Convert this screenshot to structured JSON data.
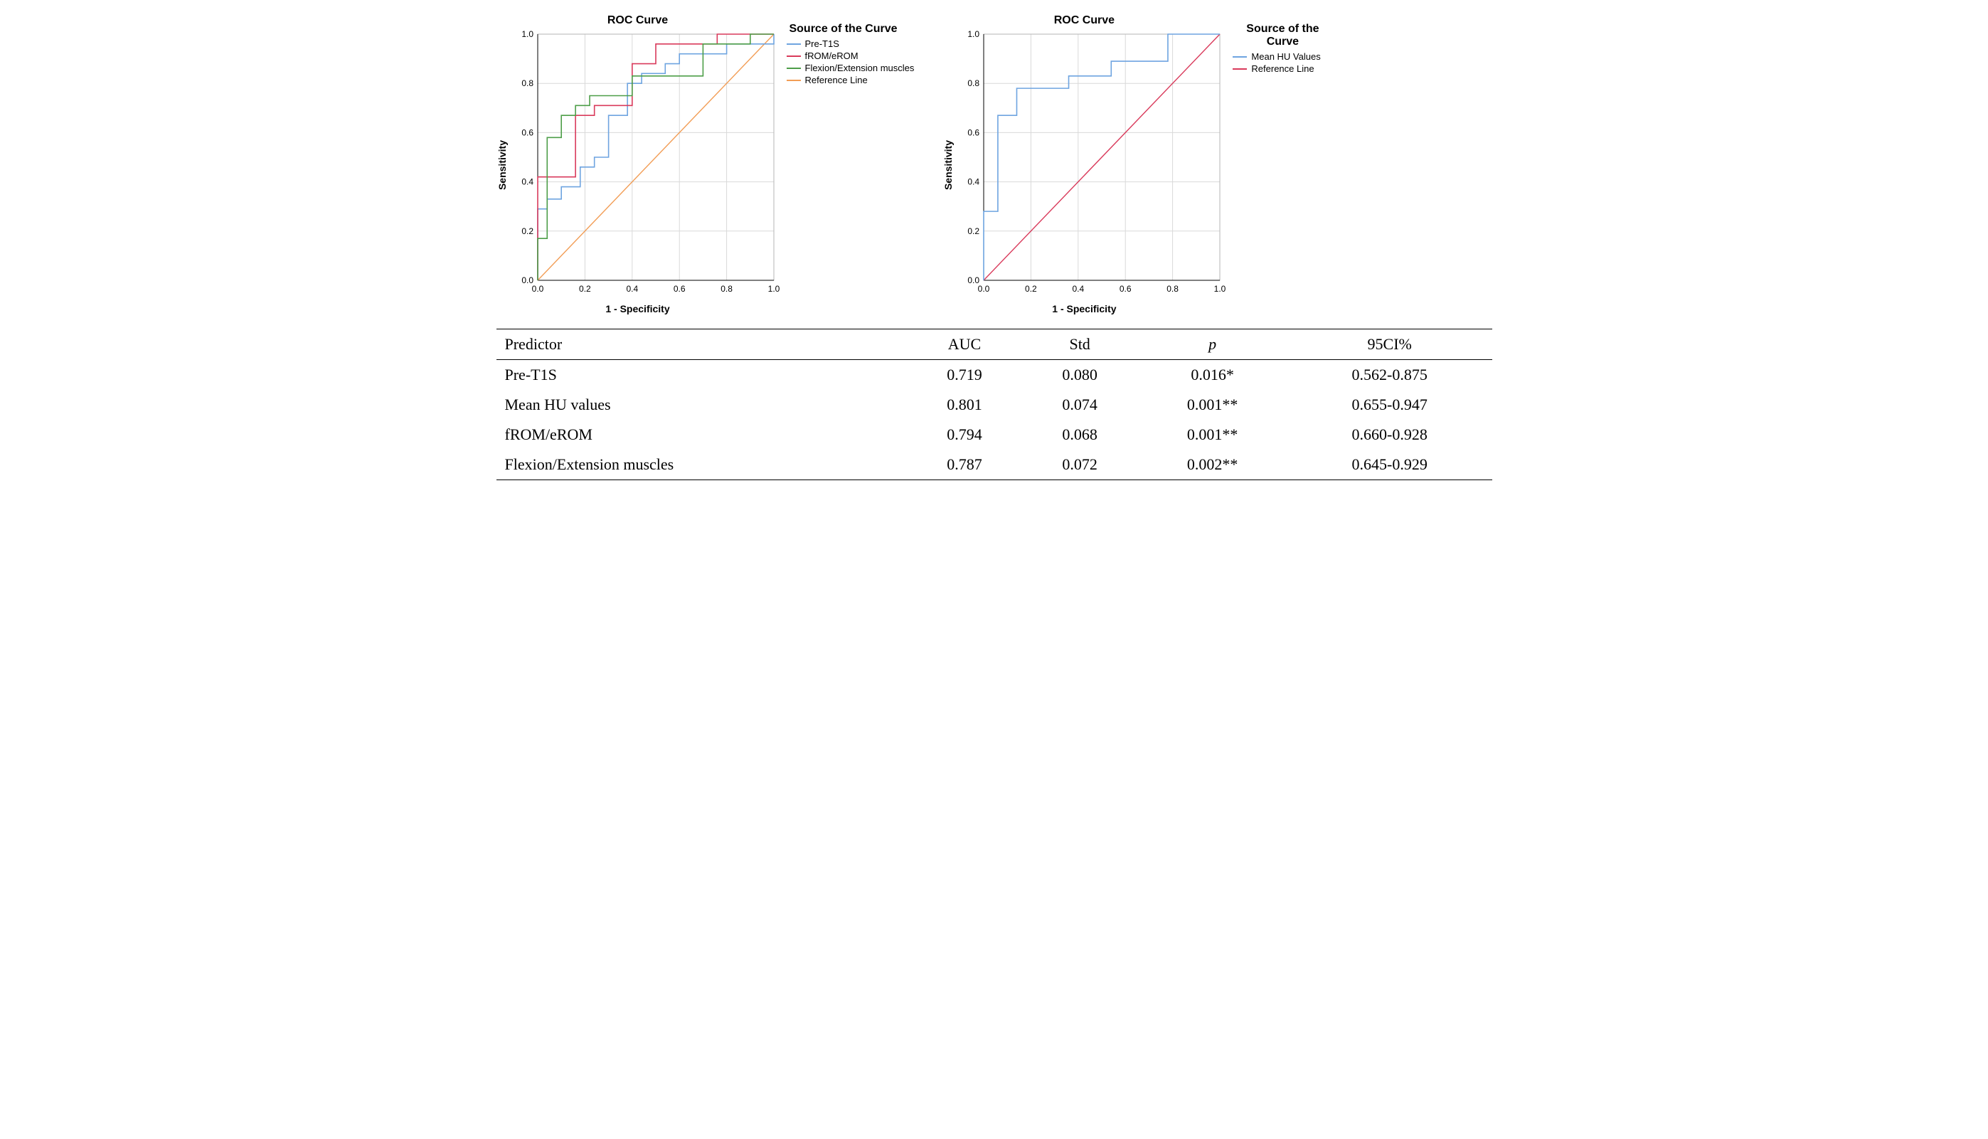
{
  "chart1": {
    "type": "line",
    "title": "ROC Curve",
    "xlabel": "1 - Specificity",
    "ylabel": "Sensitivity",
    "xlim": [
      0,
      1
    ],
    "ylim": [
      0,
      1
    ],
    "ticks_x": [
      "0.0",
      "0.2",
      "0.4",
      "0.6",
      "0.8",
      "1.0"
    ],
    "ticks_y": [
      "0.0",
      "0.2",
      "0.4",
      "0.6",
      "0.8",
      "1.0"
    ],
    "background_color": "#ffffff",
    "grid_color": "#d9d9d9",
    "border_color": "#b5b5b5",
    "title_fontsize": 16,
    "label_fontsize": 14,
    "tick_fontsize": 12,
    "line_width": 1.6,
    "series": [
      {
        "name": "Pre-T1S",
        "color": "#6ea4e0",
        "points": [
          [
            0.0,
            0.0
          ],
          [
            0.0,
            0.29
          ],
          [
            0.04,
            0.29
          ],
          [
            0.04,
            0.33
          ],
          [
            0.1,
            0.33
          ],
          [
            0.1,
            0.38
          ],
          [
            0.18,
            0.38
          ],
          [
            0.18,
            0.46
          ],
          [
            0.24,
            0.46
          ],
          [
            0.24,
            0.5
          ],
          [
            0.3,
            0.5
          ],
          [
            0.3,
            0.67
          ],
          [
            0.38,
            0.67
          ],
          [
            0.38,
            0.8
          ],
          [
            0.44,
            0.8
          ],
          [
            0.44,
            0.84
          ],
          [
            0.54,
            0.84
          ],
          [
            0.54,
            0.88
          ],
          [
            0.6,
            0.88
          ],
          [
            0.6,
            0.92
          ],
          [
            0.8,
            0.92
          ],
          [
            0.8,
            0.96
          ],
          [
            1.0,
            0.96
          ],
          [
            1.0,
            1.0
          ]
        ]
      },
      {
        "name": "fROM/eROM",
        "color": "#d93a5b",
        "points": [
          [
            0.0,
            0.0
          ],
          [
            0.0,
            0.42
          ],
          [
            0.08,
            0.42
          ],
          [
            0.08,
            0.42
          ],
          [
            0.16,
            0.42
          ],
          [
            0.16,
            0.67
          ],
          [
            0.24,
            0.67
          ],
          [
            0.24,
            0.71
          ],
          [
            0.38,
            0.71
          ],
          [
            0.38,
            0.71
          ],
          [
            0.4,
            0.71
          ],
          [
            0.4,
            0.88
          ],
          [
            0.5,
            0.88
          ],
          [
            0.5,
            0.96
          ],
          [
            0.76,
            0.96
          ],
          [
            0.76,
            1.0
          ],
          [
            1.0,
            1.0
          ]
        ]
      },
      {
        "name": "Flexion/Extension muscles",
        "color": "#4d9e48",
        "points": [
          [
            0.0,
            0.0
          ],
          [
            0.0,
            0.17
          ],
          [
            0.04,
            0.17
          ],
          [
            0.04,
            0.58
          ],
          [
            0.1,
            0.58
          ],
          [
            0.1,
            0.67
          ],
          [
            0.16,
            0.67
          ],
          [
            0.16,
            0.71
          ],
          [
            0.22,
            0.71
          ],
          [
            0.22,
            0.75
          ],
          [
            0.4,
            0.75
          ],
          [
            0.4,
            0.83
          ],
          [
            0.6,
            0.83
          ],
          [
            0.6,
            0.83
          ],
          [
            0.7,
            0.83
          ],
          [
            0.7,
            0.96
          ],
          [
            0.9,
            0.96
          ],
          [
            0.9,
            1.0
          ],
          [
            1.0,
            1.0
          ]
        ]
      }
    ],
    "reference": {
      "name": "Reference Line",
      "color": "#f29d55",
      "points": [
        [
          0,
          0
        ],
        [
          1,
          1
        ]
      ]
    },
    "legend_title": "Source of the Curve",
    "legend_items": [
      {
        "label": "Pre-T1S",
        "color": "#6ea4e0"
      },
      {
        "label": "fROM/eROM",
        "color": "#d93a5b"
      },
      {
        "label": "Flexion/Extension muscles",
        "color": "#4d9e48"
      },
      {
        "label": "Reference Line",
        "color": "#f29d55"
      }
    ]
  },
  "chart2": {
    "type": "line",
    "title": "ROC Curve",
    "xlabel": "1 - Specificity",
    "ylabel": "Sensitivity",
    "xlim": [
      0,
      1
    ],
    "ylim": [
      0,
      1
    ],
    "ticks_x": [
      "0.0",
      "0.2",
      "0.4",
      "0.6",
      "0.8",
      "1.0"
    ],
    "ticks_y": [
      "0.0",
      "0.2",
      "0.4",
      "0.6",
      "0.8",
      "1.0"
    ],
    "background_color": "#ffffff",
    "grid_color": "#d9d9d9",
    "border_color": "#b5b5b5",
    "title_fontsize": 16,
    "label_fontsize": 14,
    "tick_fontsize": 12,
    "line_width": 1.6,
    "series": [
      {
        "name": "Mean HU Values",
        "color": "#6ea4e0",
        "points": [
          [
            0.0,
            0.0
          ],
          [
            0.0,
            0.28
          ],
          [
            0.06,
            0.28
          ],
          [
            0.06,
            0.67
          ],
          [
            0.1,
            0.67
          ],
          [
            0.1,
            0.67
          ],
          [
            0.14,
            0.67
          ],
          [
            0.14,
            0.78
          ],
          [
            0.36,
            0.78
          ],
          [
            0.36,
            0.83
          ],
          [
            0.54,
            0.83
          ],
          [
            0.54,
            0.89
          ],
          [
            0.78,
            0.89
          ],
          [
            0.78,
            1.0
          ],
          [
            1.0,
            1.0
          ]
        ]
      }
    ],
    "reference": {
      "name": "Reference Line",
      "color": "#d93a5b",
      "points": [
        [
          0,
          0
        ],
        [
          1,
          1
        ]
      ]
    },
    "legend_title": "Source of the Curve",
    "legend_items": [
      {
        "label": "Mean HU Values",
        "color": "#6ea4e0"
      },
      {
        "label": "Reference Line",
        "color": "#d93a5b"
      }
    ]
  },
  "table": {
    "columns": [
      "Predictor",
      "AUC",
      "Std",
      "p",
      "95CI%"
    ],
    "italic_cols": [
      false,
      false,
      false,
      true,
      false
    ],
    "rows": [
      [
        "Pre-T1S",
        "0.719",
        "0.080",
        "0.016*",
        "0.562-0.875"
      ],
      [
        "Mean HU values",
        "0.801",
        "0.074",
        "0.001**",
        "0.655-0.947"
      ],
      [
        "fROM/eROM",
        "0.794",
        "0.068",
        "0.001**",
        "0.660-0.928"
      ],
      [
        "Flexion/Extension muscles",
        "0.787",
        "0.072",
        "0.002**",
        "0.645-0.929"
      ]
    ],
    "font_family": "Times New Roman",
    "font_size": 22,
    "border_color": "#000000"
  }
}
